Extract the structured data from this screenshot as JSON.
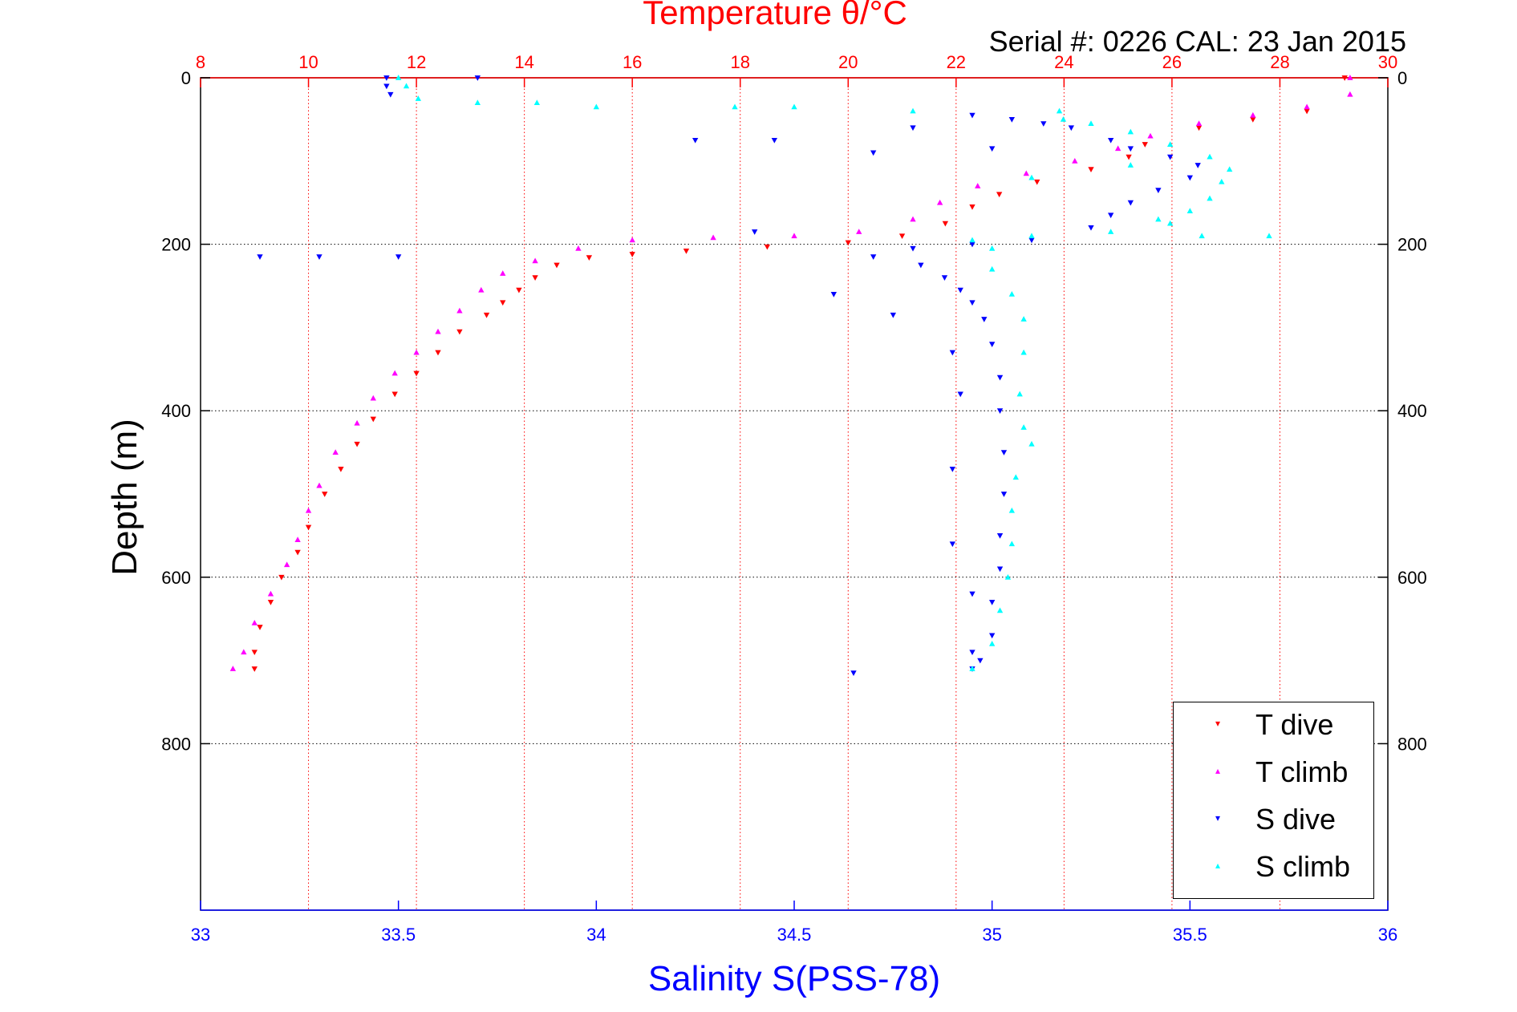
{
  "chart_data": {
    "type": "scatter",
    "title": "Temperature θ/°C",
    "subtitle": "Serial #: 0226  CAL: 23 Jan 2015",
    "xlabel": "Salinity S(PSS-78)",
    "ylabel": "Depth (m)",
    "top_xlabel": "Temperature θ/°C",
    "xlim_salinity": [
      33,
      36
    ],
    "xlim_temperature": [
      8,
      30
    ],
    "ylim_depth": [
      0,
      1000
    ],
    "y_reversed": true,
    "salinity_ticks": [
      "33",
      "33.5",
      "34",
      "34.5",
      "35",
      "35.5",
      "36"
    ],
    "temperature_ticks": [
      "8",
      "10",
      "12",
      "14",
      "16",
      "18",
      "20",
      "22",
      "24",
      "26",
      "28",
      "30"
    ],
    "depth_ticks": [
      "0",
      "200",
      "400",
      "600",
      "800"
    ],
    "grid": true,
    "legend_position": "bottom-right",
    "colors": {
      "t_dive": "#ff0000",
      "t_climb": "#ff00ff",
      "s_dive": "#0000ff",
      "s_climb": "#00ffff",
      "temp_axis": "#ff0000",
      "sal_axis": "#0000ff"
    },
    "series": [
      {
        "name": "T dive",
        "axis": "temperature",
        "marker": "triangle-down",
        "points": [
          [
            29.2,
            0
          ],
          [
            28.5,
            40
          ],
          [
            27.5,
            50
          ],
          [
            26.5,
            60
          ],
          [
            25.5,
            80
          ],
          [
            25.2,
            95
          ],
          [
            24.5,
            110
          ],
          [
            23.5,
            125
          ],
          [
            22.8,
            140
          ],
          [
            22.3,
            155
          ],
          [
            21.8,
            175
          ],
          [
            21.0,
            190
          ],
          [
            20.0,
            198
          ],
          [
            18.5,
            203
          ],
          [
            17.0,
            208
          ],
          [
            16.0,
            212
          ],
          [
            15.2,
            216
          ],
          [
            14.6,
            225
          ],
          [
            14.2,
            240
          ],
          [
            13.9,
            255
          ],
          [
            13.6,
            270
          ],
          [
            13.3,
            285
          ],
          [
            12.8,
            305
          ],
          [
            12.4,
            330
          ],
          [
            12.0,
            355
          ],
          [
            11.6,
            380
          ],
          [
            11.2,
            410
          ],
          [
            10.9,
            440
          ],
          [
            10.6,
            470
          ],
          [
            10.3,
            500
          ],
          [
            10.0,
            540
          ],
          [
            9.8,
            570
          ],
          [
            9.5,
            600
          ],
          [
            9.3,
            630
          ],
          [
            9.1,
            660
          ],
          [
            9.0,
            690
          ],
          [
            9.0,
            710
          ]
        ]
      },
      {
        "name": "T climb",
        "axis": "temperature",
        "marker": "triangle-up",
        "points": [
          [
            29.3,
            0
          ],
          [
            29.3,
            20
          ],
          [
            28.5,
            35
          ],
          [
            27.5,
            45
          ],
          [
            26.5,
            55
          ],
          [
            25.6,
            70
          ],
          [
            25.0,
            85
          ],
          [
            24.2,
            100
          ],
          [
            23.3,
            115
          ],
          [
            22.4,
            130
          ],
          [
            21.7,
            150
          ],
          [
            21.2,
            170
          ],
          [
            20.2,
            185
          ],
          [
            19.0,
            190
          ],
          [
            17.5,
            192
          ],
          [
            16.0,
            195
          ],
          [
            15.0,
            205
          ],
          [
            14.2,
            220
          ],
          [
            13.6,
            235
          ],
          [
            13.2,
            255
          ],
          [
            12.8,
            280
          ],
          [
            12.4,
            305
          ],
          [
            12.0,
            330
          ],
          [
            11.6,
            355
          ],
          [
            11.2,
            385
          ],
          [
            10.9,
            415
          ],
          [
            10.5,
            450
          ],
          [
            10.2,
            490
          ],
          [
            10.0,
            520
          ],
          [
            9.8,
            555
          ],
          [
            9.6,
            585
          ],
          [
            9.3,
            620
          ],
          [
            9.0,
            655
          ],
          [
            8.8,
            690
          ],
          [
            8.6,
            710
          ]
        ]
      },
      {
        "name": "S dive",
        "axis": "salinity",
        "marker": "triangle-down",
        "points": [
          [
            33.47,
            0
          ],
          [
            33.47,
            10
          ],
          [
            33.48,
            20
          ],
          [
            33.7,
            0
          ],
          [
            34.95,
            45
          ],
          [
            35.05,
            50
          ],
          [
            35.13,
            55
          ],
          [
            35.2,
            60
          ],
          [
            35.3,
            75
          ],
          [
            35.35,
            85
          ],
          [
            35.45,
            95
          ],
          [
            35.52,
            105
          ],
          [
            35.5,
            120
          ],
          [
            35.42,
            135
          ],
          [
            35.35,
            150
          ],
          [
            35.3,
            165
          ],
          [
            35.25,
            180
          ],
          [
            35.1,
            195
          ],
          [
            34.95,
            200
          ],
          [
            34.8,
            205
          ],
          [
            34.82,
            225
          ],
          [
            34.88,
            240
          ],
          [
            34.92,
            255
          ],
          [
            34.95,
            270
          ],
          [
            34.98,
            290
          ],
          [
            35.0,
            320
          ],
          [
            35.02,
            360
          ],
          [
            35.02,
            400
          ],
          [
            35.03,
            450
          ],
          [
            35.03,
            500
          ],
          [
            35.02,
            550
          ],
          [
            35.02,
            590
          ],
          [
            35.0,
            630
          ],
          [
            35.0,
            670
          ],
          [
            34.97,
            700
          ],
          [
            34.95,
            710
          ],
          [
            34.65,
            715
          ],
          [
            33.15,
            215
          ],
          [
            33.3,
            215
          ],
          [
            33.5,
            215
          ],
          [
            34.4,
            185
          ],
          [
            34.7,
            215
          ],
          [
            34.6,
            260
          ],
          [
            34.75,
            285
          ],
          [
            34.9,
            330
          ],
          [
            34.92,
            380
          ],
          [
            34.9,
            470
          ],
          [
            34.9,
            560
          ],
          [
            34.95,
            620
          ],
          [
            34.95,
            690
          ],
          [
            34.25,
            75
          ],
          [
            34.45,
            75
          ],
          [
            34.7,
            90
          ],
          [
            34.8,
            60
          ],
          [
            35.0,
            85
          ]
        ]
      },
      {
        "name": "S climb",
        "axis": "salinity",
        "marker": "triangle-up",
        "points": [
          [
            33.5,
            0
          ],
          [
            33.52,
            10
          ],
          [
            33.55,
            25
          ],
          [
            33.7,
            30
          ],
          [
            33.85,
            30
          ],
          [
            34.0,
            35
          ],
          [
            34.35,
            35
          ],
          [
            34.5,
            35
          ],
          [
            34.8,
            40
          ],
          [
            35.17,
            40
          ],
          [
            35.18,
            50
          ],
          [
            35.25,
            55
          ],
          [
            35.35,
            65
          ],
          [
            35.45,
            80
          ],
          [
            35.55,
            95
          ],
          [
            35.6,
            110
          ],
          [
            35.58,
            125
          ],
          [
            35.55,
            145
          ],
          [
            35.5,
            160
          ],
          [
            35.45,
            175
          ],
          [
            35.3,
            185
          ],
          [
            35.1,
            190
          ],
          [
            34.95,
            195
          ],
          [
            35.0,
            205
          ],
          [
            35.0,
            230
          ],
          [
            35.05,
            260
          ],
          [
            35.08,
            290
          ],
          [
            35.08,
            330
          ],
          [
            35.07,
            380
          ],
          [
            35.08,
            420
          ],
          [
            35.1,
            440
          ],
          [
            35.06,
            480
          ],
          [
            35.05,
            520
          ],
          [
            35.05,
            560
          ],
          [
            35.04,
            600
          ],
          [
            35.02,
            640
          ],
          [
            35.0,
            680
          ],
          [
            34.95,
            710
          ],
          [
            35.1,
            120
          ],
          [
            35.35,
            105
          ],
          [
            35.42,
            170
          ],
          [
            35.53,
            190
          ],
          [
            35.7,
            190
          ]
        ]
      }
    ]
  },
  "legend": {
    "items": [
      {
        "label": "T dive",
        "marker": "▾",
        "color": "#ff0000"
      },
      {
        "label": "T climb",
        "marker": "▴",
        "color": "#ff00ff"
      },
      {
        "label": "S dive",
        "marker": "▾",
        "color": "#0000ff"
      },
      {
        "label": "S climb",
        "marker": "▴",
        "color": "#00ffff"
      }
    ]
  }
}
